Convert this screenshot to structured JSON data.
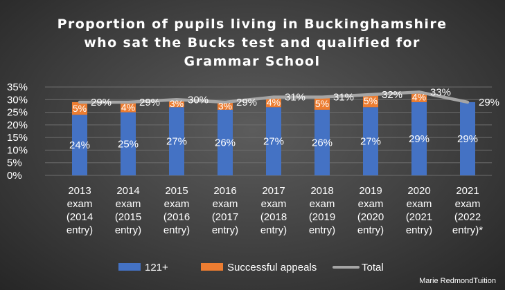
{
  "chart_data": {
    "type": "bar",
    "stacked": true,
    "title": [
      "Proportion of pupils living in Buckinghamshire",
      "who sat the Bucks test and qualified for",
      "Grammar School"
    ],
    "categories": [
      [
        "2013",
        "exam",
        "(2014",
        "entry)"
      ],
      [
        "2014",
        "exam",
        "(2015",
        "entry)"
      ],
      [
        "2015",
        "exam",
        "(2016",
        "entry)"
      ],
      [
        "2016",
        "exam",
        "(2017",
        "entry)"
      ],
      [
        "2017",
        "exam",
        "(2018",
        "entry)"
      ],
      [
        "2018",
        "exam",
        "(2019",
        "entry)"
      ],
      [
        "2019",
        "exam",
        "(2020",
        "entry)"
      ],
      [
        "2020",
        "exam",
        "(2021",
        "entry)"
      ],
      [
        "2021",
        "exam",
        "(2022",
        "entry)*"
      ]
    ],
    "series": [
      {
        "name": "121+",
        "type": "bar",
        "color": "#4472c4",
        "values": [
          24,
          25,
          27,
          26,
          27,
          26,
          27,
          29,
          29
        ]
      },
      {
        "name": "Successful appeals",
        "type": "bar",
        "color": "#ed7d31",
        "values": [
          5,
          4,
          3,
          3,
          4,
          5,
          5,
          4,
          0
        ]
      },
      {
        "name": "Total",
        "type": "line",
        "color": "#a5a5a5",
        "values": [
          29,
          29,
          30,
          29,
          31,
          31,
          32,
          33,
          29
        ]
      }
    ],
    "data_labels": {
      "121+": [
        "24%",
        "25%",
        "27%",
        "26%",
        "27%",
        "26%",
        "27%",
        "29%",
        "29%"
      ],
      "Successful appeals": [
        "5%",
        "4%",
        "3%",
        "3%",
        "4%",
        "5%",
        "5%",
        "4%",
        ""
      ],
      "Total": [
        "29%",
        "29%",
        "30%",
        "29%",
        "31%",
        "31%",
        "32%",
        "33%",
        "29%"
      ]
    },
    "y_ticks": [
      "35%",
      "30%",
      "25%",
      "20%",
      "15%",
      "10%",
      "5%",
      "0%"
    ],
    "ylim": [
      0,
      35
    ],
    "grid": true,
    "legend": "bottom",
    "xlabel": "",
    "ylabel": ""
  },
  "credit": "Marie RedmondTuition"
}
